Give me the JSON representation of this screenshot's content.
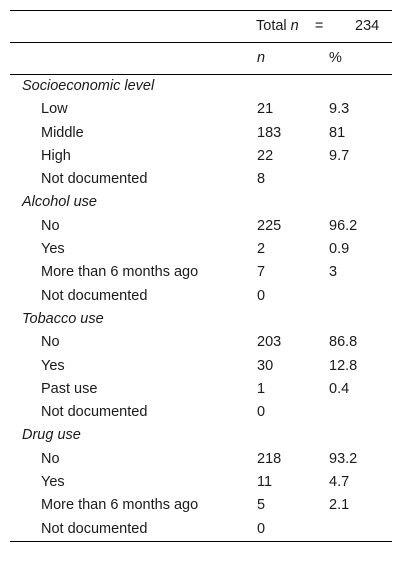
{
  "header": {
    "total_label": "Total",
    "n_symbol": "n",
    "equals": "=",
    "total_value": "234",
    "col_n": "n",
    "col_pct": "%"
  },
  "sections": [
    {
      "title": "Socioeconomic level",
      "rows": [
        {
          "label": "Low",
          "n": "21",
          "pct": "9.3"
        },
        {
          "label": "Middle",
          "n": "183",
          "pct": "81"
        },
        {
          "label": "High",
          "n": "22",
          "pct": "9.7"
        },
        {
          "label": "Not documented",
          "n": "8",
          "pct": ""
        }
      ]
    },
    {
      "title": "Alcohol use",
      "rows": [
        {
          "label": "No",
          "n": "225",
          "pct": "96.2"
        },
        {
          "label": "Yes",
          "n": "2",
          "pct": "0.9"
        },
        {
          "label": "More than 6 months ago",
          "n": "7",
          "pct": "3"
        },
        {
          "label": "Not documented",
          "n": "0",
          "pct": ""
        }
      ]
    },
    {
      "title": "Tobacco use",
      "rows": [
        {
          "label": "No",
          "n": "203",
          "pct": "86.8"
        },
        {
          "label": "Yes",
          "n": "30",
          "pct": "12.8"
        },
        {
          "label": "Past use",
          "n": "1",
          "pct": "0.4"
        },
        {
          "label": "Not documented",
          "n": "0",
          "pct": ""
        }
      ]
    },
    {
      "title": "Drug use",
      "rows": [
        {
          "label": "No",
          "n": "218",
          "pct": "93.2"
        },
        {
          "label": "Yes",
          "n": "11",
          "pct": "4.7"
        },
        {
          "label": "More than 6 months ago",
          "n": "5",
          "pct": "2.1"
        },
        {
          "label": "Not documented",
          "n": "0",
          "pct": ""
        }
      ]
    }
  ]
}
